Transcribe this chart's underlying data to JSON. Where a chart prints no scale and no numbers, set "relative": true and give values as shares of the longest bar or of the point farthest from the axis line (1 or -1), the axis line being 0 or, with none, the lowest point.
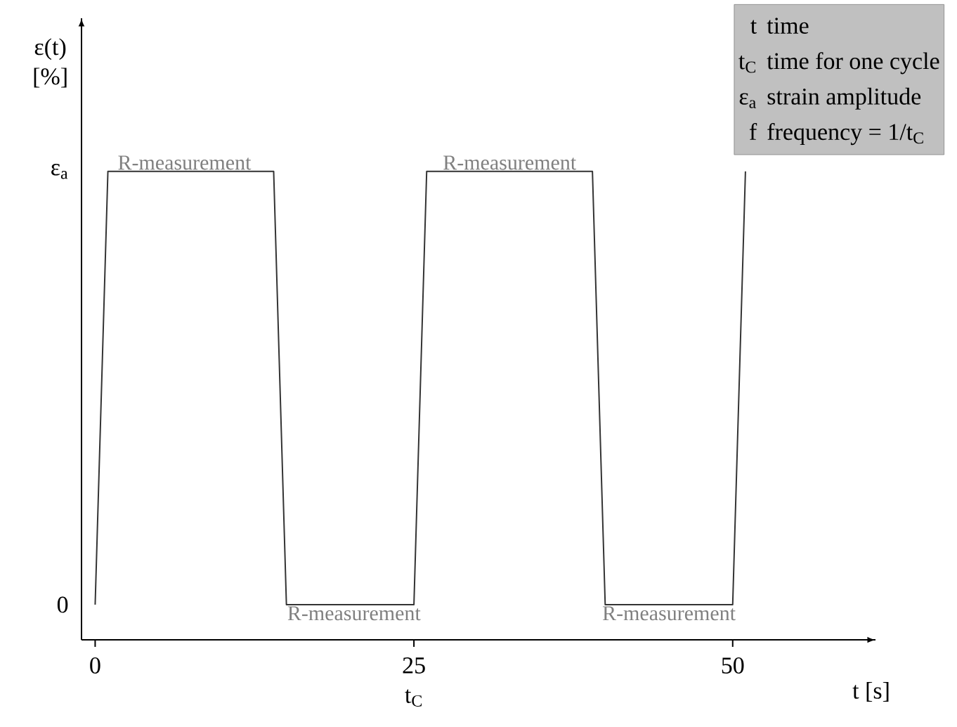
{
  "chart_data": {
    "type": "line",
    "ylabel": "ε(t) [%]",
    "xlabel": "t [s]",
    "xlim": [
      -1.07,
      61.2
    ],
    "relative": true,
    "xticks": [
      0,
      {
        "value": 25,
        "label": "25 t$_{C}$"
      },
      50
    ],
    "series": [
      {
        "color": "#333333",
        "x": [
          0,
          1,
          14,
          15,
          25,
          26,
          39,
          40,
          50,
          51
        ],
        "values": [
          0.075,
          1,
          1,
          0.075,
          0.075,
          1,
          1,
          0.075,
          0.075,
          1
        ]
      }
    ],
    "annotations": [
      {
        "text": "R-measurement",
        "x": 7,
        "y": 1
      },
      {
        "text": "R-measurement",
        "x": 20.3,
        "y": 0.075
      },
      {
        "text": "R-measurement",
        "x": 32.5,
        "y": 1
      },
      {
        "text": "R-measurement",
        "x": 45,
        "y": 0.075
      },
      "0",
      "ε$_{a}$",
      "t",
      "time",
      "t$_{C}$",
      "time for one cycle",
      "ε$_{a}$",
      "strain amplitude",
      "f",
      "frequency = 1/t$_{C}$"
    ]
  }
}
